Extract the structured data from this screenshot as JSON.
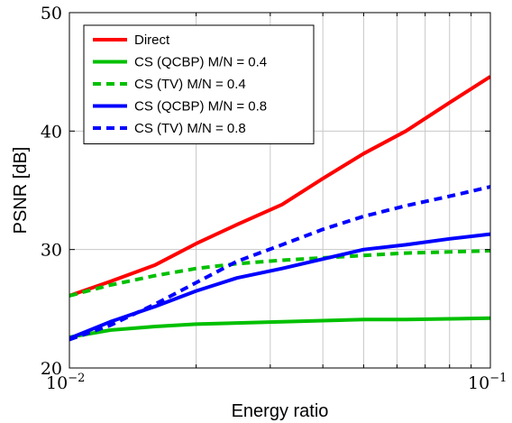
{
  "chart_data": {
    "type": "line",
    "xlabel": "Energy ratio",
    "ylabel": "PSNR [dB]",
    "xscale": "log",
    "xlim": [
      0.01,
      0.1
    ],
    "ylim": [
      20,
      50
    ],
    "grid": true,
    "legend_position": "top-left",
    "x_ticks": [
      {
        "base": "10",
        "exp": "−2"
      },
      {
        "base": "10",
        "exp": "−1"
      }
    ],
    "y_ticks": [
      "20",
      "30",
      "40",
      "50"
    ],
    "series": [
      {
        "name": "Direct",
        "color": "#ff0000",
        "dash": "solid",
        "x": [
          0.01,
          0.0125,
          0.016,
          0.02,
          0.025,
          0.032,
          0.04,
          0.05,
          0.063,
          0.08,
          0.1
        ],
        "y": [
          26.1,
          27.3,
          28.7,
          30.5,
          32.1,
          33.8,
          36.0,
          38.1,
          40.0,
          42.4,
          44.6
        ]
      },
      {
        "name": "CS (QCBP) M/N = 0.4",
        "color": "#00c000",
        "dash": "solid",
        "x": [
          0.01,
          0.0125,
          0.016,
          0.02,
          0.025,
          0.032,
          0.04,
          0.05,
          0.063,
          0.08,
          0.1
        ],
        "y": [
          22.6,
          23.2,
          23.5,
          23.7,
          23.8,
          23.9,
          24.0,
          24.1,
          24.1,
          24.15,
          24.2
        ]
      },
      {
        "name": "CS (TV) M/N = 0.4",
        "color": "#00c000",
        "dash": "dashed",
        "x": [
          0.01,
          0.0125,
          0.016,
          0.02,
          0.025,
          0.032,
          0.04,
          0.05,
          0.063,
          0.08,
          0.1
        ],
        "y": [
          26.1,
          27.0,
          27.8,
          28.4,
          28.8,
          29.1,
          29.3,
          29.5,
          29.7,
          29.8,
          29.9
        ]
      },
      {
        "name": "CS (QCBP) M/N = 0.8",
        "color": "#0000ff",
        "dash": "solid",
        "x": [
          0.01,
          0.0125,
          0.016,
          0.02,
          0.025,
          0.032,
          0.04,
          0.05,
          0.063,
          0.08,
          0.1
        ],
        "y": [
          22.5,
          23.9,
          25.2,
          26.5,
          27.6,
          28.4,
          29.2,
          30.0,
          30.4,
          30.9,
          31.3
        ]
      },
      {
        "name": "CS (TV) M/N = 0.8",
        "color": "#0000ff",
        "dash": "dashed",
        "x": [
          0.01,
          0.0125,
          0.016,
          0.02,
          0.025,
          0.032,
          0.04,
          0.05,
          0.063,
          0.08,
          0.1
        ],
        "y": [
          22.4,
          23.6,
          25.4,
          27.2,
          29.0,
          30.4,
          31.7,
          32.8,
          33.7,
          34.5,
          35.3
        ]
      }
    ]
  }
}
